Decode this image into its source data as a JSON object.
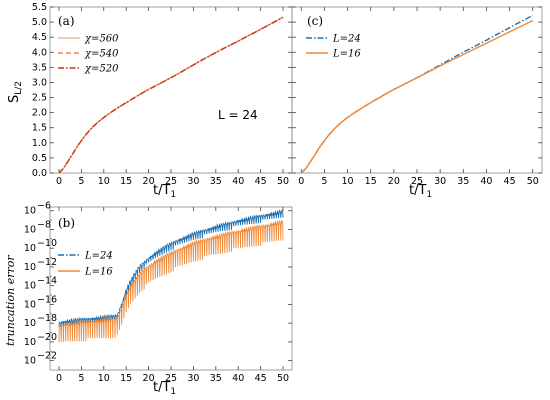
{
  "chart_data": [
    {
      "id": "a",
      "type": "line",
      "panel_label": "(a)",
      "xlabel_main": "t/T",
      "xlabel_sub": "1",
      "ylabel_main": "S",
      "ylabel_sub": "L/2",
      "xlim": [
        -2,
        52
      ],
      "ylim": [
        0,
        5.5
      ],
      "xticks": [
        0,
        5,
        10,
        15,
        20,
        25,
        30,
        35,
        40,
        45,
        50
      ],
      "yticks": [
        0.0,
        0.5,
        1.0,
        1.5,
        2.0,
        2.5,
        3.0,
        3.5,
        4.0,
        4.5,
        5.0,
        5.5
      ],
      "annotation": "L = 24",
      "legend_position": "upper-left",
      "series": [
        {
          "name": "χ=560",
          "color": "#f5b98e",
          "dash": "solid",
          "x": [
            0,
            1,
            2,
            3,
            4,
            5,
            6,
            7,
            8,
            9,
            10,
            12,
            14,
            16,
            18,
            20,
            22,
            24,
            26,
            28,
            30,
            32,
            34,
            36,
            38,
            40,
            42,
            44,
            46,
            48,
            50
          ],
          "y": [
            0,
            0.15,
            0.38,
            0.62,
            0.86,
            1.07,
            1.27,
            1.44,
            1.59,
            1.72,
            1.84,
            2.05,
            2.24,
            2.42,
            2.6,
            2.77,
            2.92,
            3.08,
            3.24,
            3.41,
            3.58,
            3.75,
            3.91,
            4.07,
            4.22,
            4.37,
            4.53,
            4.68,
            4.84,
            5.0,
            5.16
          ]
        },
        {
          "name": "χ=540",
          "color": "#ee8a55",
          "dash": "dashed",
          "x": [
            0,
            1,
            2,
            3,
            4,
            5,
            6,
            7,
            8,
            9,
            10,
            12,
            14,
            16,
            18,
            20,
            22,
            24,
            26,
            28,
            30,
            32,
            34,
            36,
            38,
            40,
            42,
            44,
            46,
            48,
            50
          ],
          "y": [
            0,
            0.15,
            0.38,
            0.62,
            0.86,
            1.07,
            1.27,
            1.44,
            1.59,
            1.72,
            1.84,
            2.05,
            2.24,
            2.42,
            2.6,
            2.77,
            2.92,
            3.08,
            3.24,
            3.41,
            3.58,
            3.75,
            3.91,
            4.07,
            4.22,
            4.37,
            4.53,
            4.68,
            4.84,
            5.0,
            5.16
          ]
        },
        {
          "name": "χ=520",
          "color": "#c8321e",
          "dash": "dashdot",
          "x": [
            0,
            1,
            2,
            3,
            4,
            5,
            6,
            7,
            8,
            9,
            10,
            12,
            14,
            16,
            18,
            20,
            22,
            24,
            26,
            28,
            30,
            32,
            34,
            36,
            38,
            40,
            42,
            44,
            46,
            48,
            50
          ],
          "y": [
            0,
            0.15,
            0.38,
            0.62,
            0.86,
            1.07,
            1.27,
            1.44,
            1.59,
            1.72,
            1.84,
            2.05,
            2.24,
            2.42,
            2.6,
            2.77,
            2.92,
            3.08,
            3.24,
            3.41,
            3.58,
            3.75,
            3.91,
            4.07,
            4.22,
            4.37,
            4.53,
            4.68,
            4.84,
            5.0,
            5.16
          ]
        }
      ]
    },
    {
      "id": "c",
      "type": "line",
      "panel_label": "(c)",
      "xlabel_main": "t/T",
      "xlabel_sub": "1",
      "xlim": [
        -2,
        52
      ],
      "ylim": [
        0,
        5.5
      ],
      "xticks": [
        0,
        5,
        10,
        15,
        20,
        25,
        30,
        35,
        40,
        45,
        50
      ],
      "legend_position": "upper-left",
      "series": [
        {
          "name": "L=24",
          "color": "#1f6fb0",
          "dash": "dashdot",
          "x": [
            0,
            1,
            2,
            3,
            4,
            5,
            6,
            7,
            8,
            9,
            10,
            12,
            14,
            16,
            18,
            20,
            22,
            24,
            26,
            28,
            30,
            32,
            34,
            36,
            38,
            40,
            42,
            44,
            46,
            48,
            50
          ],
          "y": [
            0,
            0.15,
            0.38,
            0.62,
            0.86,
            1.07,
            1.27,
            1.44,
            1.59,
            1.72,
            1.84,
            2.05,
            2.24,
            2.42,
            2.6,
            2.77,
            2.92,
            3.08,
            3.24,
            3.41,
            3.58,
            3.75,
            3.92,
            4.08,
            4.24,
            4.4,
            4.57,
            4.73,
            4.9,
            5.06,
            5.22
          ]
        },
        {
          "name": "L=16",
          "color": "#f08a3a",
          "dash": "solid",
          "x": [
            0,
            1,
            2,
            3,
            4,
            5,
            6,
            7,
            8,
            9,
            10,
            12,
            14,
            16,
            18,
            20,
            22,
            24,
            26,
            28,
            30,
            32,
            34,
            36,
            38,
            40,
            42,
            44,
            46,
            48,
            50
          ],
          "y": [
            0,
            0.15,
            0.38,
            0.62,
            0.86,
            1.07,
            1.27,
            1.44,
            1.59,
            1.72,
            1.84,
            2.05,
            2.24,
            2.42,
            2.6,
            2.77,
            2.92,
            3.08,
            3.23,
            3.39,
            3.55,
            3.7,
            3.85,
            4.0,
            4.15,
            4.3,
            4.45,
            4.6,
            4.75,
            4.9,
            5.05
          ]
        }
      ]
    },
    {
      "id": "b",
      "type": "line",
      "panel_label": "(b)",
      "xlabel_main": "t/T",
      "xlabel_sub": "1",
      "ylabel": "truncation error",
      "yscale": "log",
      "xlim": [
        -2,
        52
      ],
      "ylim_exp": [
        -23,
        -5.6
      ],
      "xticks": [
        0,
        5,
        10,
        15,
        20,
        25,
        30,
        35,
        40,
        45,
        50
      ],
      "yticks_exp": [
        -22,
        -20,
        -18,
        -16,
        -14,
        -12,
        -10,
        -8,
        -6
      ],
      "ytick_base": "10",
      "legend_position": "upper-left",
      "series": [
        {
          "name": "L=24",
          "color": "#1f6fb0",
          "dash": "dashdot",
          "x": [
            0,
            2,
            4,
            6,
            8,
            10,
            12,
            13,
            14,
            15,
            16,
            17,
            18,
            20,
            22,
            24,
            26,
            28,
            30,
            32,
            34,
            36,
            38,
            40,
            42,
            44,
            46,
            48,
            50
          ],
          "y_exp": [
            -17.8,
            -17.6,
            -17.5,
            -17.4,
            -17.3,
            -17.2,
            -17.1,
            -17.0,
            -15.8,
            -14.3,
            -13.3,
            -12.5,
            -11.8,
            -10.9,
            -10.2,
            -9.6,
            -9.1,
            -8.7,
            -8.3,
            -8.0,
            -7.7,
            -7.4,
            -7.2,
            -6.9,
            -6.7,
            -6.5,
            -6.3,
            -6.1,
            -5.9
          ],
          "dip_depth": 1.0
        },
        {
          "name": "L=16",
          "color": "#f08a3a",
          "dash": "solid",
          "x": [
            0,
            2,
            4,
            6,
            8,
            10,
            12,
            13,
            14,
            15,
            16,
            17,
            18,
            20,
            22,
            24,
            26,
            28,
            30,
            32,
            34,
            36,
            38,
            40,
            42,
            44,
            46,
            48,
            50
          ],
          "y_exp": [
            -18.1,
            -17.9,
            -17.8,
            -17.7,
            -17.6,
            -17.5,
            -17.4,
            -17.3,
            -16.2,
            -14.8,
            -13.9,
            -13.2,
            -12.6,
            -11.7,
            -11.1,
            -10.6,
            -10.1,
            -9.7,
            -9.3,
            -9.0,
            -8.7,
            -8.5,
            -8.2,
            -8.0,
            -7.8,
            -7.6,
            -7.4,
            -7.2,
            -7.0
          ],
          "dip_depth": 3.2
        }
      ]
    }
  ]
}
